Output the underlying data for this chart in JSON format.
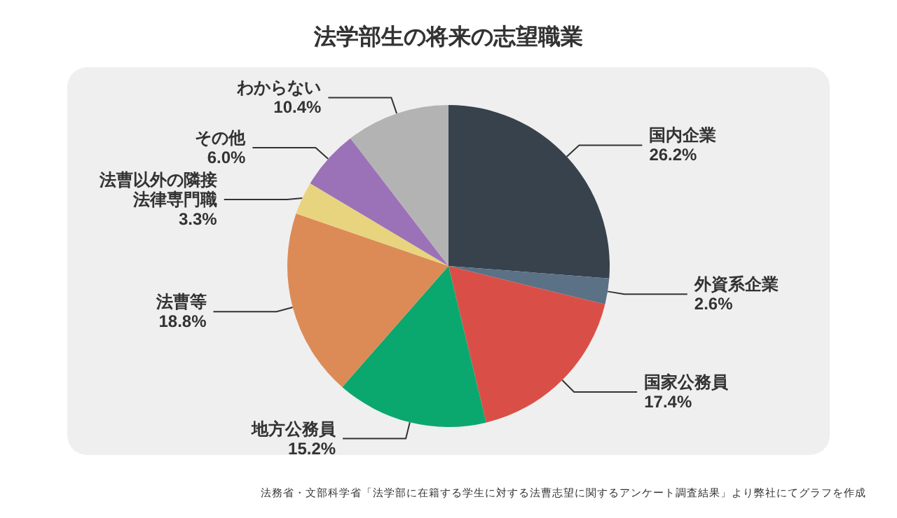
{
  "chart_data": {
    "type": "pie",
    "title": "法学部生の将来の志望職業",
    "categories": [
      "国内企業",
      "外資系企業",
      "国家公務員",
      "地方公務員",
      "法曹等",
      "法曹以外の隣接法律専門職",
      "その他",
      "わからない"
    ],
    "values": [
      26.2,
      2.6,
      17.4,
      15.2,
      18.8,
      3.3,
      6.0,
      10.4
    ],
    "value_labels": [
      "26.2%",
      "2.6%",
      "17.4%",
      "15.2%",
      "18.8%",
      "3.3%",
      "6.0%",
      "10.4%"
    ],
    "colors": [
      "#37424d",
      "#5a7186",
      "#d94f47",
      "#0aa86e",
      "#dc8b57",
      "#e8d47e",
      "#9b72b8",
      "#b3b3b3"
    ],
    "legend": false,
    "annotations": [
      "法務省・文部科学省「法学部に在籍する学生に対する法曹志望に関するアンケート調査結果」より弊社にてグラフを作成"
    ]
  }
}
